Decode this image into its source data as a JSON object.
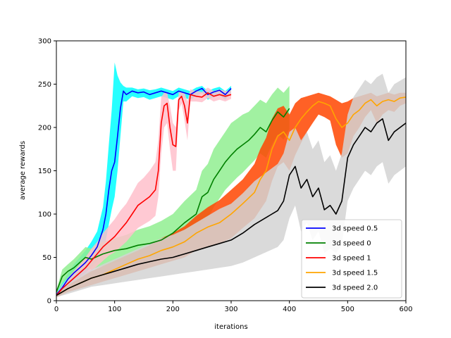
{
  "chart_data": {
    "type": "line",
    "title": "",
    "xlabel": "iterations",
    "ylabel": "average rewards",
    "xlim": [
      0,
      600
    ],
    "ylim": [
      0,
      300
    ],
    "xticks": [
      "0",
      "100",
      "200",
      "300",
      "400",
      "500",
      "600"
    ],
    "yticks": [
      "0",
      "50",
      "100",
      "150",
      "200",
      "250",
      "300"
    ],
    "grid": false,
    "legend_position": "lower-right",
    "series": [
      {
        "name": "3d speed 0.5",
        "color": "#0000ff",
        "band_color": "#00ffff",
        "x": [
          0,
          10,
          20,
          30,
          40,
          50,
          60,
          70,
          80,
          85,
          90,
          95,
          100,
          105,
          110,
          115,
          120,
          130,
          140,
          150,
          160,
          170,
          180,
          190,
          200,
          210,
          220,
          230,
          240,
          250,
          260,
          270,
          280,
          290,
          300
        ],
        "values": [
          7,
          15,
          25,
          32,
          38,
          44,
          52,
          62,
          82,
          100,
          128,
          150,
          160,
          190,
          222,
          242,
          238,
          242,
          240,
          241,
          238,
          240,
          242,
          240,
          238,
          242,
          240,
          238,
          242,
          245,
          238,
          241,
          243,
          238,
          245
        ],
        "upper": [
          9,
          20,
          32,
          42,
          50,
          58,
          68,
          80,
          108,
          138,
          180,
          220,
          275,
          260,
          252,
          248,
          246,
          246,
          244,
          245,
          243,
          244,
          246,
          244,
          242,
          246,
          244,
          242,
          246,
          248,
          242,
          245,
          247,
          242,
          248
        ],
        "lower": [
          5,
          10,
          18,
          24,
          28,
          32,
          38,
          46,
          58,
          70,
          88,
          105,
          120,
          150,
          190,
          230,
          230,
          236,
          234,
          235,
          232,
          234,
          236,
          234,
          232,
          236,
          234,
          232,
          236,
          240,
          232,
          235,
          237,
          232,
          240
        ]
      },
      {
        "name": "3d speed 0",
        "color": "#008000",
        "band_color": "#90ee90",
        "x": [
          0,
          10,
          20,
          30,
          40,
          50,
          60,
          80,
          100,
          120,
          140,
          160,
          180,
          200,
          220,
          240,
          250,
          260,
          270,
          280,
          290,
          300,
          310,
          320,
          330,
          340,
          350,
          360,
          370,
          380,
          390,
          400
        ],
        "values": [
          10,
          28,
          34,
          38,
          44,
          50,
          48,
          54,
          58,
          60,
          64,
          66,
          70,
          78,
          90,
          100,
          120,
          125,
          140,
          150,
          160,
          168,
          175,
          180,
          185,
          192,
          200,
          195,
          208,
          218,
          212,
          222
        ],
        "upper": [
          12,
          36,
          42,
          48,
          55,
          62,
          60,
          68,
          72,
          76,
          82,
          86,
          92,
          100,
          115,
          128,
          150,
          158,
          175,
          185,
          195,
          205,
          210,
          215,
          218,
          225,
          232,
          228,
          238,
          246,
          240,
          248
        ],
        "lower": [
          8,
          20,
          26,
          30,
          34,
          38,
          36,
          40,
          44,
          46,
          48,
          50,
          52,
          58,
          66,
          74,
          90,
          95,
          108,
          118,
          128,
          135,
          142,
          148,
          155,
          162,
          170,
          165,
          180,
          192,
          186,
          198
        ]
      },
      {
        "name": "3d speed 1",
        "color": "#ff0000",
        "band_color": "#ffc0cb",
        "x": [
          0,
          10,
          20,
          30,
          40,
          50,
          60,
          70,
          80,
          90,
          100,
          110,
          120,
          130,
          140,
          150,
          160,
          170,
          175,
          180,
          185,
          190,
          195,
          200,
          205,
          210,
          215,
          220,
          225,
          230,
          240,
          250,
          260,
          270,
          280,
          290,
          300
        ],
        "values": [
          6,
          14,
          20,
          26,
          32,
          38,
          46,
          54,
          62,
          68,
          74,
          82,
          90,
          100,
          110,
          115,
          120,
          128,
          150,
          205,
          225,
          228,
          200,
          180,
          178,
          232,
          236,
          225,
          205,
          238,
          236,
          235,
          240,
          236,
          238,
          236,
          238
        ],
        "upper": [
          8,
          18,
          26,
          34,
          42,
          50,
          60,
          68,
          78,
          86,
          94,
          104,
          112,
          124,
          136,
          142,
          150,
          160,
          185,
          235,
          240,
          240,
          225,
          205,
          200,
          240,
          242,
          240,
          230,
          244,
          242,
          241,
          246,
          242,
          244,
          242,
          243
        ],
        "lower": [
          4,
          10,
          14,
          18,
          24,
          28,
          34,
          40,
          46,
          52,
          56,
          62,
          68,
          76,
          84,
          88,
          92,
          98,
          120,
          170,
          200,
          205,
          175,
          150,
          150,
          220,
          228,
          208,
          185,
          230,
          230,
          229,
          234,
          230,
          232,
          230,
          233
        ]
      },
      {
        "name": "3d speed 1.5",
        "color": "#ffa500",
        "band_color": "#ff4500",
        "x": [
          0,
          20,
          40,
          60,
          80,
          100,
          120,
          140,
          160,
          180,
          200,
          220,
          240,
          260,
          280,
          300,
          320,
          340,
          350,
          360,
          370,
          380,
          390,
          400,
          410,
          420,
          430,
          440,
          450,
          460,
          470,
          480,
          490,
          500,
          510,
          520,
          530,
          540,
          550,
          560,
          570,
          580,
          590,
          600
        ],
        "values": [
          6,
          14,
          20,
          26,
          30,
          36,
          42,
          48,
          52,
          58,
          62,
          68,
          78,
          85,
          90,
          100,
          112,
          125,
          140,
          150,
          175,
          190,
          195,
          185,
          200,
          210,
          218,
          225,
          230,
          228,
          225,
          210,
          200,
          205,
          215,
          220,
          228,
          232,
          225,
          230,
          232,
          230,
          234,
          235
        ],
        "upper": [
          8,
          18,
          26,
          34,
          40,
          46,
          52,
          58,
          64,
          72,
          78,
          86,
          98,
          108,
          116,
          128,
          140,
          158,
          175,
          188,
          210,
          222,
          225,
          215,
          228,
          234,
          236,
          238,
          240,
          238,
          236,
          232,
          228,
          230,
          234,
          236,
          238,
          240,
          236,
          238,
          240,
          238,
          240,
          240
        ],
        "lower": [
          4,
          10,
          14,
          18,
          22,
          26,
          30,
          34,
          38,
          42,
          46,
          50,
          58,
          62,
          66,
          72,
          84,
          95,
          105,
          115,
          138,
          155,
          160,
          150,
          168,
          182,
          195,
          205,
          215,
          212,
          208,
          180,
          165,
          170,
          190,
          200,
          212,
          220,
          205,
          215,
          220,
          218,
          225,
          228
        ]
      },
      {
        "name": "3d speed 2.0",
        "color": "#000000",
        "band_color": "#d3d3d3",
        "x": [
          0,
          20,
          40,
          60,
          80,
          100,
          120,
          140,
          160,
          180,
          200,
          220,
          240,
          260,
          280,
          300,
          320,
          340,
          360,
          380,
          390,
          400,
          410,
          420,
          430,
          440,
          450,
          460,
          470,
          480,
          490,
          500,
          510,
          520,
          530,
          540,
          550,
          560,
          570,
          580,
          590,
          600
        ],
        "values": [
          6,
          14,
          20,
          26,
          30,
          34,
          38,
          42,
          45,
          48,
          50,
          54,
          58,
          62,
          66,
          70,
          78,
          88,
          96,
          104,
          115,
          145,
          155,
          130,
          140,
          120,
          130,
          105,
          110,
          100,
          115,
          165,
          180,
          190,
          200,
          195,
          205,
          210,
          185,
          195,
          200,
          205
        ],
        "upper": [
          8,
          20,
          28,
          36,
          42,
          48,
          54,
          60,
          66,
          72,
          76,
          82,
          90,
          98,
          106,
          112,
          124,
          138,
          148,
          158,
          170,
          195,
          200,
          185,
          195,
          175,
          185,
          160,
          168,
          150,
          170,
          215,
          235,
          245,
          255,
          250,
          258,
          262,
          240,
          250,
          254,
          258
        ],
        "lower": [
          4,
          8,
          12,
          16,
          18,
          20,
          22,
          24,
          26,
          28,
          30,
          32,
          34,
          36,
          38,
          40,
          44,
          50,
          56,
          62,
          70,
          95,
          110,
          80,
          90,
          70,
          80,
          55,
          60,
          55,
          65,
          115,
          130,
          140,
          150,
          145,
          155,
          160,
          135,
          145,
          150,
          155
        ]
      }
    ]
  }
}
